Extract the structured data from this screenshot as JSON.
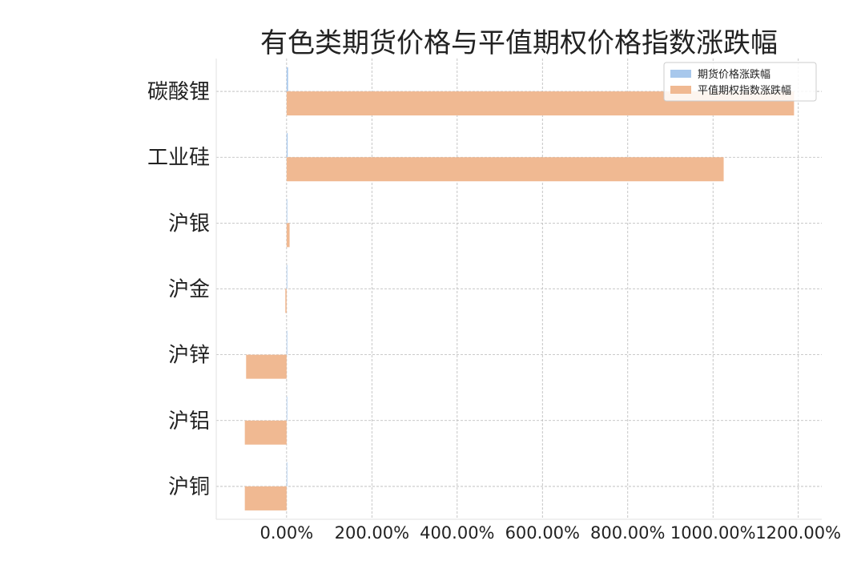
{
  "chart_data": {
    "type": "bar",
    "orientation": "horizontal",
    "title": "有色类期货价格与平值期权价格指数涨跌幅",
    "categories": [
      "碳酸锂",
      "工业硅",
      "沪银",
      "沪金",
      "沪锌",
      "沪铝",
      "沪铜"
    ],
    "series": [
      {
        "name": "期货价格涨跌幅",
        "color": "#a8c8ec",
        "values": [
          3.5,
          2.5,
          0.0,
          0.0,
          0.0,
          0.0,
          0.0
        ]
      },
      {
        "name": "平值期权指数涨跌幅",
        "color": "#f0b992",
        "values": [
          1190.0,
          1025.0,
          7.0,
          -3.0,
          -95.0,
          -98.0,
          -98.0
        ]
      }
    ],
    "xlim": [
      -165,
      1255
    ],
    "xticks": [
      0,
      200,
      400,
      600,
      800,
      1000,
      1200
    ],
    "xtick_labels": [
      "0.00%",
      "200.00%",
      "400.00%",
      "600.00%",
      "800.00%",
      "1000.00%",
      "1200.00%"
    ],
    "xlabel": "",
    "ylabel": "",
    "grid": true,
    "legend_position": "top-right"
  }
}
